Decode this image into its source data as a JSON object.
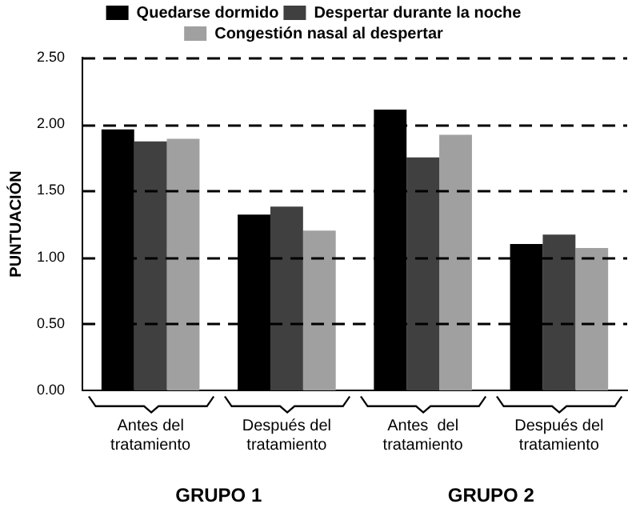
{
  "chart_data": {
    "type": "bar",
    "ylabel": "PUNTUACIÓN",
    "categories": [
      "Antes del tratamiento",
      "Después del tratamiento",
      "Antes  del tratamiento",
      "Después del tratamiento"
    ],
    "series": [
      {
        "name": "Quedarse dormido",
        "color": "#000000",
        "values": [
          1.96,
          1.32,
          2.11,
          1.1
        ]
      },
      {
        "name": "Despertar durante la noche",
        "color": "#404040",
        "values": [
          1.87,
          1.38,
          1.75,
          1.17
        ]
      },
      {
        "name": "Congestión nasal al despertar",
        "color": "#a0a0a0",
        "values": [
          1.89,
          1.2,
          1.92,
          1.07
        ]
      }
    ],
    "ylim": [
      0,
      2.5
    ],
    "yticks": [
      {
        "value": 0,
        "label": "0.00"
      },
      {
        "value": 0.5,
        "label": "0.50"
      },
      {
        "value": 1,
        "label": "1.00"
      },
      {
        "value": 1.5,
        "label": "1.50"
      },
      {
        "value": 2,
        "label": "2.00"
      },
      {
        "value": 2.5,
        "label": "2.50"
      }
    ],
    "grid": "y",
    "legend": "top",
    "annotations": [
      "GRUPO 1",
      "GRUPO 2"
    ]
  }
}
